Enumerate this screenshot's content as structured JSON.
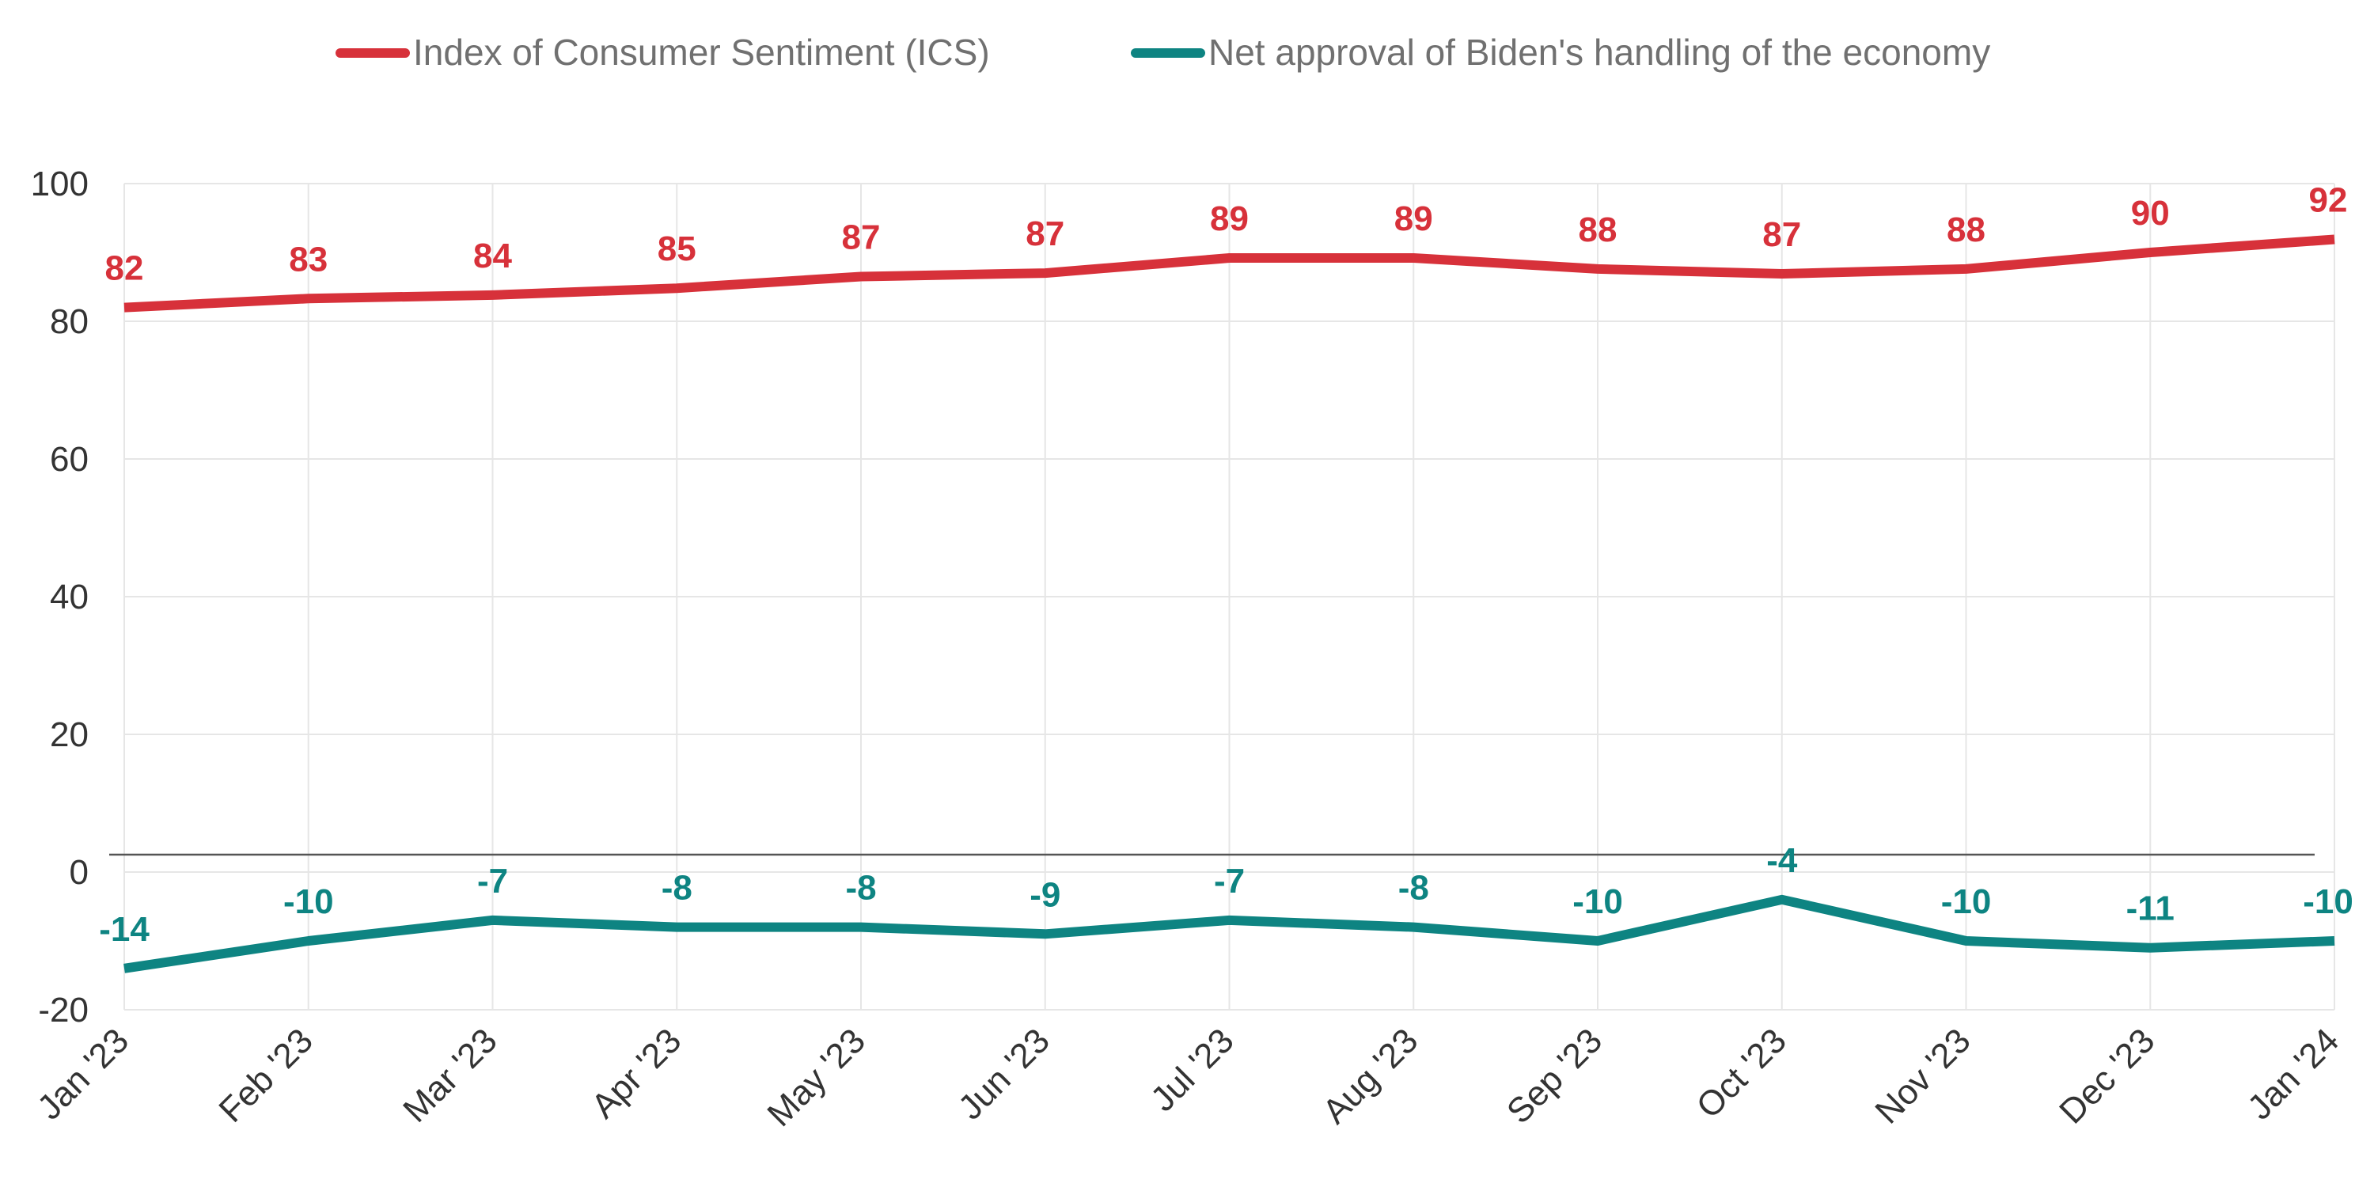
{
  "chart_data": {
    "type": "line",
    "categories": [
      "Jan '23",
      "Feb '23",
      "Mar '23",
      "Apr '23",
      "May '23",
      "Jun '23",
      "Jul '23",
      "Aug '23",
      "Sep '23",
      "Oct '23",
      "Nov '23",
      "Dec '23",
      "Jan '24"
    ],
    "series": [
      {
        "name": "Index of Consumer Sentiment (ICS)",
        "color": "#d7313a",
        "values": [
          82,
          83.3,
          83.8,
          84.8,
          86.5,
          87,
          89.2,
          89.2,
          87.6,
          86.9,
          87.6,
          90,
          91.9
        ],
        "labels": [
          "82",
          "83",
          "84",
          "85",
          "87",
          "87",
          "89",
          "89",
          "88",
          "87",
          "88",
          "90",
          "92"
        ]
      },
      {
        "name": "Net approval of Biden's handling of the economy",
        "color": "#0e8482",
        "values": [
          -14,
          -10,
          -7,
          -8,
          -8,
          -9,
          -7,
          -8,
          -10,
          -4,
          -10,
          -11,
          -10
        ],
        "labels": [
          "-14",
          "-10",
          "-7",
          "-8",
          "-8",
          "-9",
          "-7",
          "-8",
          "-10",
          "-4",
          "-10",
          "-11",
          "-10"
        ]
      }
    ],
    "yticks": [
      100,
      80,
      60,
      40,
      20,
      0,
      -20
    ],
    "ylim": [
      -20,
      100
    ],
    "grid": true,
    "legend": "top",
    "title": "",
    "xlabel": "",
    "ylabel": ""
  }
}
